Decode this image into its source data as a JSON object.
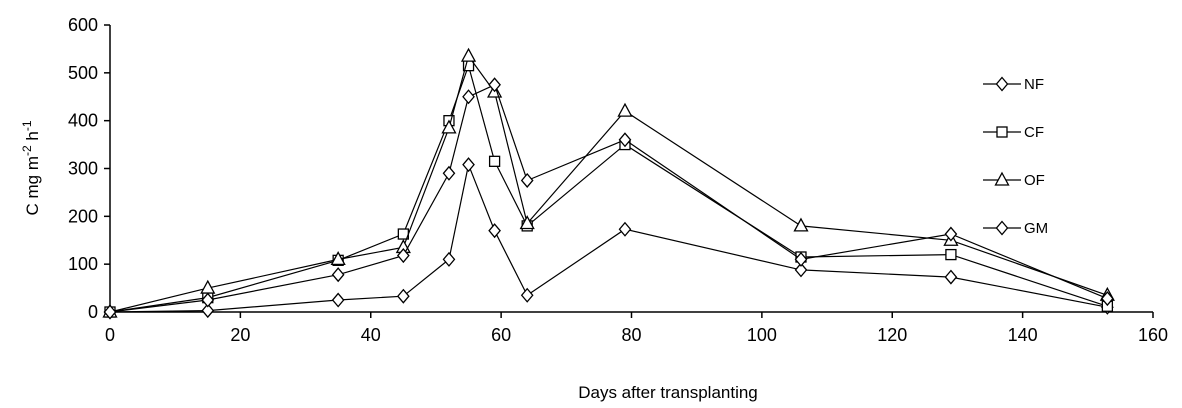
{
  "chart_data": {
    "type": "line",
    "xlabel": "Days after transplanting",
    "ylabel_parts": [
      "C mg m",
      "-2",
      " h",
      "-1"
    ],
    "xlim": [
      0,
      160
    ],
    "ylim": [
      0,
      600
    ],
    "xticks": [
      0,
      20,
      40,
      60,
      80,
      100,
      120,
      140,
      160
    ],
    "yticks": [
      0,
      100,
      200,
      300,
      400,
      500,
      600
    ],
    "grid": false,
    "legend_position": "right",
    "x": [
      0,
      15,
      35,
      45,
      52,
      55,
      59,
      64,
      79,
      106,
      129,
      153
    ],
    "series": [
      {
        "name": "NF",
        "marker": "diamond",
        "values": [
          0,
          3,
          25,
          33,
          110,
          308,
          170,
          35,
          173,
          88,
          73,
          10
        ]
      },
      {
        "name": "CF",
        "marker": "square",
        "values": [
          0,
          30,
          108,
          163,
          400,
          515,
          315,
          180,
          350,
          115,
          120,
          12
        ]
      },
      {
        "name": "OF",
        "marker": "triangle",
        "values": [
          0,
          50,
          110,
          135,
          385,
          535,
          460,
          185,
          420,
          180,
          150,
          35
        ]
      },
      {
        "name": "GM",
        "marker": "diamond",
        "values": [
          0,
          25,
          78,
          118,
          290,
          450,
          475,
          275,
          360,
          110,
          163,
          28
        ]
      }
    ]
  }
}
